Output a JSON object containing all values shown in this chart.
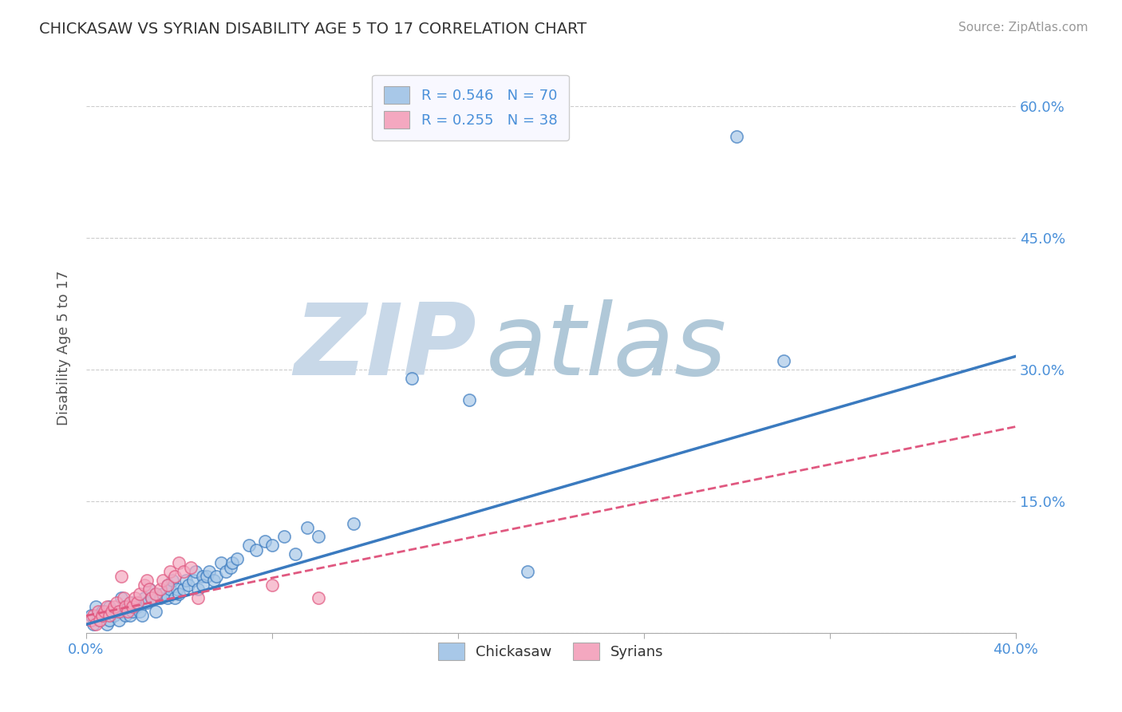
{
  "title": "CHICKASAW VS SYRIAN DISABILITY AGE 5 TO 17 CORRELATION CHART",
  "source_text": "Source: ZipAtlas.com",
  "ylabel": "Disability Age 5 to 17",
  "xlim": [
    0.0,
    0.4
  ],
  "ylim": [
    0.0,
    0.65
  ],
  "xticks": [
    0.0,
    0.08,
    0.16,
    0.24,
    0.32,
    0.4
  ],
  "xtick_labels": [
    "0.0%",
    "",
    "",
    "",
    "",
    "40.0%"
  ],
  "yticks": [
    0.0,
    0.15,
    0.3,
    0.45,
    0.6
  ],
  "ytick_labels": [
    "",
    "15.0%",
    "30.0%",
    "45.0%",
    "60.0%"
  ],
  "chickasaw_R": 0.546,
  "chickasaw_N": 70,
  "syrian_R": 0.255,
  "syrian_N": 38,
  "chickasaw_color": "#a8c8e8",
  "syrian_color": "#f4a8c0",
  "chickasaw_line_color": "#3a7abf",
  "syrian_line_color": "#e05880",
  "background_color": "#ffffff",
  "grid_color": "#cccccc",
  "watermark_zip_color": "#c8d8e8",
  "watermark_atlas_color": "#b0c8d8",
  "legend_labels": [
    "Chickasaw",
    "Syrians"
  ],
  "chickasaw_scatter": [
    [
      0.002,
      0.02
    ],
    [
      0.003,
      0.01
    ],
    [
      0.004,
      0.03
    ],
    [
      0.005,
      0.02
    ],
    [
      0.006,
      0.015
    ],
    [
      0.007,
      0.025
    ],
    [
      0.008,
      0.02
    ],
    [
      0.009,
      0.01
    ],
    [
      0.01,
      0.03
    ],
    [
      0.01,
      0.015
    ],
    [
      0.012,
      0.02
    ],
    [
      0.013,
      0.025
    ],
    [
      0.014,
      0.015
    ],
    [
      0.015,
      0.025
    ],
    [
      0.015,
      0.04
    ],
    [
      0.016,
      0.03
    ],
    [
      0.017,
      0.02
    ],
    [
      0.018,
      0.03
    ],
    [
      0.019,
      0.02
    ],
    [
      0.02,
      0.025
    ],
    [
      0.02,
      0.035
    ],
    [
      0.022,
      0.03
    ],
    [
      0.023,
      0.025
    ],
    [
      0.024,
      0.02
    ],
    [
      0.025,
      0.04
    ],
    [
      0.026,
      0.035
    ],
    [
      0.027,
      0.05
    ],
    [
      0.028,
      0.04
    ],
    [
      0.03,
      0.045
    ],
    [
      0.03,
      0.025
    ],
    [
      0.032,
      0.04
    ],
    [
      0.033,
      0.045
    ],
    [
      0.035,
      0.04
    ],
    [
      0.035,
      0.055
    ],
    [
      0.036,
      0.05
    ],
    [
      0.037,
      0.06
    ],
    [
      0.038,
      0.04
    ],
    [
      0.039,
      0.05
    ],
    [
      0.04,
      0.045
    ],
    [
      0.042,
      0.05
    ],
    [
      0.043,
      0.06
    ],
    [
      0.044,
      0.055
    ],
    [
      0.046,
      0.06
    ],
    [
      0.047,
      0.07
    ],
    [
      0.048,
      0.05
    ],
    [
      0.05,
      0.065
    ],
    [
      0.05,
      0.055
    ],
    [
      0.052,
      0.065
    ],
    [
      0.053,
      0.07
    ],
    [
      0.055,
      0.06
    ],
    [
      0.056,
      0.065
    ],
    [
      0.058,
      0.08
    ],
    [
      0.06,
      0.07
    ],
    [
      0.062,
      0.075
    ],
    [
      0.063,
      0.08
    ],
    [
      0.065,
      0.085
    ],
    [
      0.07,
      0.1
    ],
    [
      0.073,
      0.095
    ],
    [
      0.077,
      0.105
    ],
    [
      0.08,
      0.1
    ],
    [
      0.085,
      0.11
    ],
    [
      0.09,
      0.09
    ],
    [
      0.095,
      0.12
    ],
    [
      0.1,
      0.11
    ],
    [
      0.115,
      0.125
    ],
    [
      0.14,
      0.29
    ],
    [
      0.165,
      0.265
    ],
    [
      0.19,
      0.07
    ],
    [
      0.28,
      0.565
    ],
    [
      0.3,
      0.31
    ]
  ],
  "syrian_scatter": [
    [
      0.002,
      0.015
    ],
    [
      0.003,
      0.02
    ],
    [
      0.004,
      0.01
    ],
    [
      0.005,
      0.025
    ],
    [
      0.006,
      0.015
    ],
    [
      0.007,
      0.02
    ],
    [
      0.008,
      0.025
    ],
    [
      0.009,
      0.03
    ],
    [
      0.01,
      0.02
    ],
    [
      0.011,
      0.025
    ],
    [
      0.012,
      0.03
    ],
    [
      0.013,
      0.035
    ],
    [
      0.014,
      0.025
    ],
    [
      0.015,
      0.065
    ],
    [
      0.016,
      0.04
    ],
    [
      0.017,
      0.03
    ],
    [
      0.018,
      0.025
    ],
    [
      0.019,
      0.035
    ],
    [
      0.02,
      0.03
    ],
    [
      0.021,
      0.04
    ],
    [
      0.022,
      0.035
    ],
    [
      0.023,
      0.045
    ],
    [
      0.025,
      0.055
    ],
    [
      0.026,
      0.06
    ],
    [
      0.027,
      0.05
    ],
    [
      0.028,
      0.04
    ],
    [
      0.03,
      0.045
    ],
    [
      0.032,
      0.05
    ],
    [
      0.033,
      0.06
    ],
    [
      0.035,
      0.055
    ],
    [
      0.036,
      0.07
    ],
    [
      0.038,
      0.065
    ],
    [
      0.04,
      0.08
    ],
    [
      0.042,
      0.07
    ],
    [
      0.045,
      0.075
    ],
    [
      0.048,
      0.04
    ],
    [
      0.08,
      0.055
    ],
    [
      0.1,
      0.04
    ]
  ],
  "chickasaw_line_x": [
    0.0,
    0.4
  ],
  "chickasaw_line_y": [
    0.01,
    0.315
  ],
  "syrian_line_x": [
    0.0,
    0.4
  ],
  "syrian_line_y": [
    0.02,
    0.235
  ],
  "title_color": "#333333",
  "axis_label_color": "#555555",
  "tick_color": "#4a90d9",
  "legend_R_color": "#4a90d9"
}
